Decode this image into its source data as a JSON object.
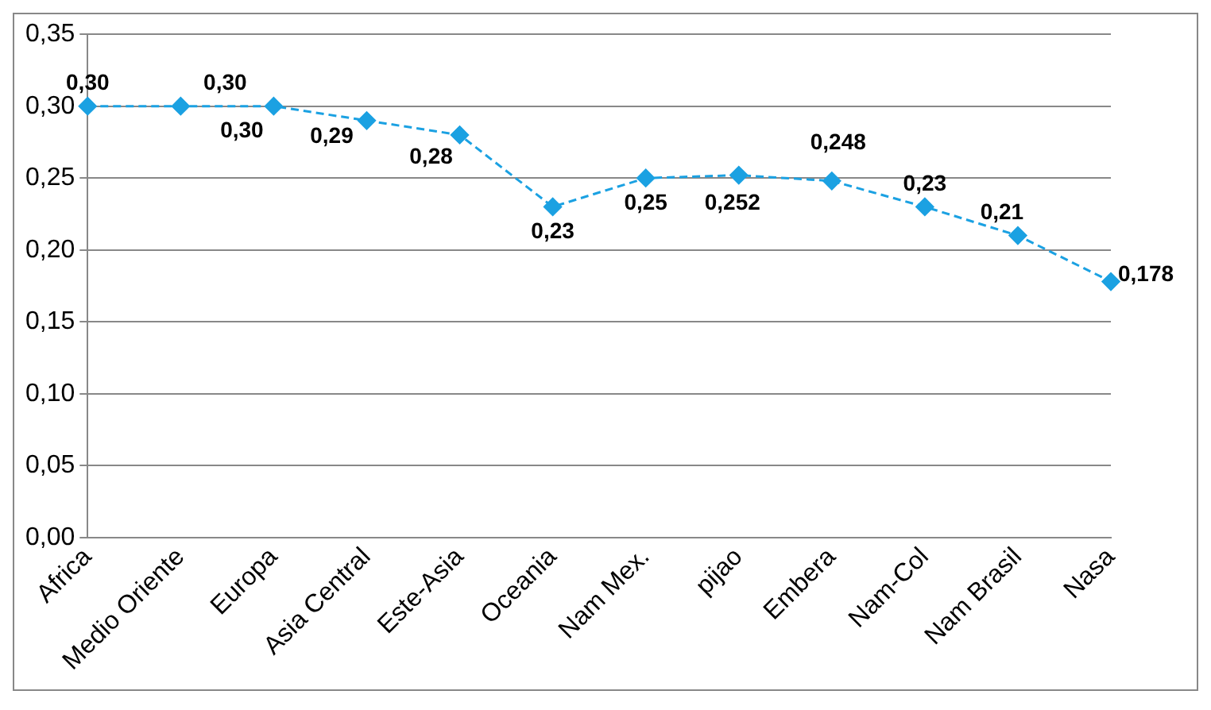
{
  "chart_data": {
    "type": "line",
    "categories": [
      "Africa",
      "Medio Oriente",
      "Europa",
      "Asia Central",
      "Este-Asia",
      "Oceania",
      "Nam Mex.",
      "pijao",
      "Embera",
      "Nam-Col",
      "Nam Brasil",
      "Nasa"
    ],
    "series": [
      {
        "color": "#1ba1e2",
        "values": [
          0.3,
          0.3,
          0.3,
          0.29,
          0.28,
          0.23,
          0.25,
          0.252,
          0.248,
          0.23,
          0.21,
          0.178
        ],
        "value_labels": [
          "0,30",
          "0,30",
          "0,30",
          "0,29",
          "0,28",
          "0,23",
          "0,25",
          "0,252",
          "0,248",
          "0,23",
          "0,21",
          "0,178"
        ]
      }
    ],
    "ylim": [
      0,
      0.35
    ],
    "yticks": [
      {
        "value": 0,
        "label": "0,00"
      },
      {
        "value": 0.05,
        "label": "0,05"
      },
      {
        "value": 0.1,
        "label": "0,10"
      },
      {
        "value": 0.15,
        "label": "0,15"
      },
      {
        "value": 0.2,
        "label": "0,20"
      },
      {
        "value": 0.25,
        "label": "0,25"
      },
      {
        "value": 0.3,
        "label": "0,30"
      },
      {
        "value": 0.35,
        "label": "0,35"
      }
    ],
    "grid": "y",
    "legend": false,
    "marker": "diamond",
    "line_style": "dashed"
  }
}
